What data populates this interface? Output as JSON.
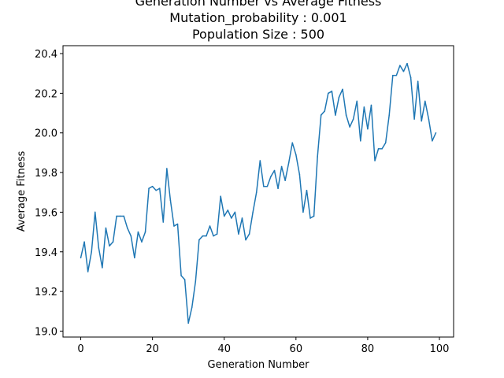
{
  "chart_data": {
    "type": "line",
    "title": [
      "Generation Number vs Average Fitness",
      "Mutation_probability : 0.001",
      "Population Size : 500"
    ],
    "xlabel": "Generation Number",
    "ylabel": "Average Fitness",
    "xlim": [
      -4.95,
      103.95
    ],
    "ylim": [
      18.97,
      20.44
    ],
    "xticks": [
      0,
      20,
      40,
      60,
      80,
      100
    ],
    "yticks": [
      19.0,
      19.2,
      19.4,
      19.6,
      19.8,
      20.0,
      20.2,
      20.4
    ],
    "grid": false,
    "line_color": "#1f77b4",
    "x": [
      0,
      1,
      2,
      3,
      4,
      5,
      6,
      7,
      8,
      9,
      10,
      11,
      12,
      13,
      14,
      15,
      16,
      17,
      18,
      19,
      20,
      21,
      22,
      23,
      24,
      25,
      26,
      27,
      28,
      29,
      30,
      31,
      32,
      33,
      34,
      35,
      36,
      37,
      38,
      39,
      40,
      41,
      42,
      43,
      44,
      45,
      46,
      47,
      48,
      49,
      50,
      51,
      52,
      53,
      54,
      55,
      56,
      57,
      58,
      59,
      60,
      61,
      62,
      63,
      64,
      65,
      66,
      67,
      68,
      69,
      70,
      71,
      72,
      73,
      74,
      75,
      76,
      77,
      78,
      79,
      80,
      81,
      82,
      83,
      84,
      85,
      86,
      87,
      88,
      89,
      90,
      91,
      92,
      93,
      94,
      95,
      96,
      97,
      98,
      99
    ],
    "y": [
      19.37,
      19.45,
      19.3,
      19.4,
      19.6,
      19.42,
      19.32,
      19.52,
      19.43,
      19.45,
      19.58,
      19.58,
      19.58,
      19.52,
      19.48,
      19.37,
      19.5,
      19.45,
      19.5,
      19.72,
      19.73,
      19.71,
      19.72,
      19.55,
      19.82,
      19.66,
      19.53,
      19.54,
      19.28,
      19.26,
      19.04,
      19.12,
      19.25,
      19.46,
      19.48,
      19.48,
      19.53,
      19.48,
      19.49,
      19.68,
      19.58,
      19.61,
      19.57,
      19.6,
      19.49,
      19.57,
      19.46,
      19.49,
      19.6,
      19.7,
      19.86,
      19.73,
      19.73,
      19.78,
      19.81,
      19.72,
      19.83,
      19.76,
      19.85,
      19.95,
      19.89,
      19.79,
      19.6,
      19.71,
      19.57,
      19.58,
      19.88,
      20.09,
      20.11,
      20.2,
      20.21,
      20.09,
      20.18,
      20.22,
      20.09,
      20.03,
      20.07,
      20.16,
      19.96,
      20.13,
      20.02,
      20.14,
      19.86,
      19.92,
      19.92,
      19.95,
      20.09,
      20.29,
      20.29,
      20.34,
      20.31,
      20.35,
      20.28,
      20.07,
      20.26,
      20.06,
      20.16,
      20.07,
      19.96,
      20.0
    ]
  }
}
